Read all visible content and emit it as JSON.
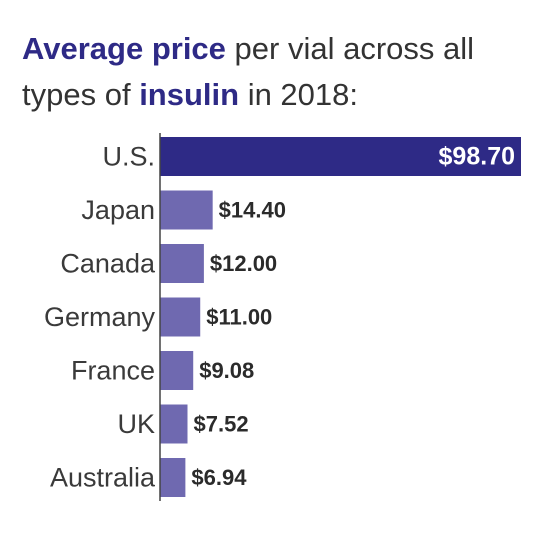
{
  "title": {
    "part1": "Average price",
    "part2": " per vial across all types of ",
    "part3": "insulin",
    "part4": " in 2018:"
  },
  "colors": {
    "highlight": "#2e2a86",
    "bar_other": "#6f69b0",
    "text": "#333333"
  },
  "chart_data": {
    "type": "bar",
    "orientation": "horizontal",
    "title": "Average price per vial across all types of insulin in 2018:",
    "xlabel": "",
    "ylabel": "",
    "categories": [
      "U.S.",
      "Japan",
      "Canada",
      "Germany",
      "France",
      "UK",
      "Australia"
    ],
    "values": [
      98.7,
      14.4,
      12.0,
      11.0,
      9.08,
      7.52,
      6.94
    ],
    "value_labels": [
      "$98.70",
      "$14.40",
      "$12.00",
      "$11.00",
      "$9.08",
      "$7.52",
      "$6.94"
    ],
    "xlim": [
      0,
      98.7
    ],
    "grid": false
  }
}
